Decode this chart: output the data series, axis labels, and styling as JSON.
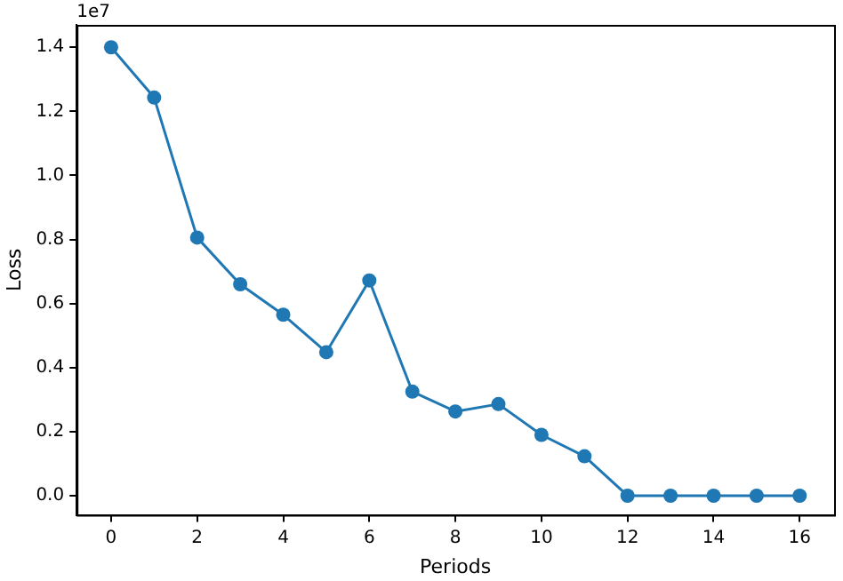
{
  "chart_data": {
    "type": "line",
    "xlabel": "Periods",
    "ylabel": "Loss",
    "annotations": [
      "1e7"
    ],
    "x": [
      0,
      1,
      2,
      3,
      4,
      5,
      6,
      7,
      8,
      9,
      10,
      11,
      12,
      13,
      14,
      15,
      16
    ],
    "series": [
      {
        "color": "#1f77b4",
        "values": [
          1.4,
          1.243,
          0.806,
          0.66,
          0.565,
          0.448,
          0.672,
          0.325,
          0.263,
          0.286,
          0.19,
          0.123,
          0,
          0,
          0,
          0,
          0
        ]
      }
    ],
    "xlim": [
      -0.8,
      16.8
    ],
    "ylim": [
      -0.06,
      1.47
    ],
    "xticks": [
      0,
      2,
      4,
      6,
      8,
      10,
      12,
      14,
      16
    ],
    "yticks": [
      {
        "value": 0,
        "label": "0.0"
      },
      0.2,
      0.4,
      0.6,
      0.8,
      {
        "value": 1,
        "label": "1.0"
      },
      1.2,
      1.4
    ],
    "grid": false,
    "legend": false,
    "marker": "circle",
    "line_style": "solid"
  }
}
